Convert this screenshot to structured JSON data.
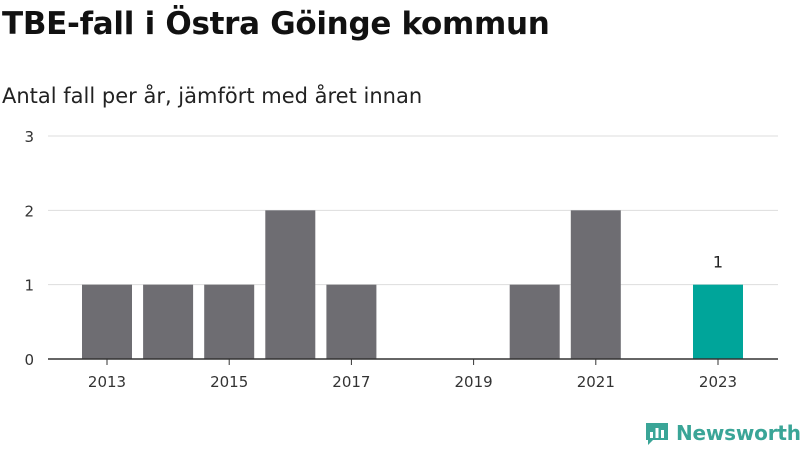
{
  "header": {
    "title": "TBE-fall i Östra Göinge kommun",
    "subtitle": "Antal fall per år, jämfört med året innan"
  },
  "brand": {
    "name": "Newsworthy",
    "icon": "newsworthy-logo-icon",
    "color": "#3aa597"
  },
  "chart_data": {
    "type": "bar",
    "title": "TBE-fall i Östra Göinge kommun",
    "subtitle": "Antal fall per år, jämfört med året innan",
    "xlabel": "",
    "ylabel": "",
    "ylim": [
      0,
      3
    ],
    "yticks": [
      0,
      1,
      2,
      3
    ],
    "xtick_labels": [
      "2013",
      "2015",
      "2017",
      "2019",
      "2021",
      "2023"
    ],
    "categories": [
      "2013",
      "2014",
      "2015",
      "2016",
      "2017",
      "2018",
      "2019",
      "2020",
      "2021",
      "2022",
      "2023"
    ],
    "values": [
      1,
      1,
      1,
      2,
      1,
      0,
      0,
      1,
      2,
      0,
      1
    ],
    "highlight_category": "2023",
    "data_labels": [
      {
        "category": "2023",
        "text": "1"
      }
    ],
    "grid": true,
    "colors": {
      "bar": "#6e6d72",
      "highlight": "#00a59a",
      "grid": "#dddddd",
      "axis": "#333333"
    }
  }
}
